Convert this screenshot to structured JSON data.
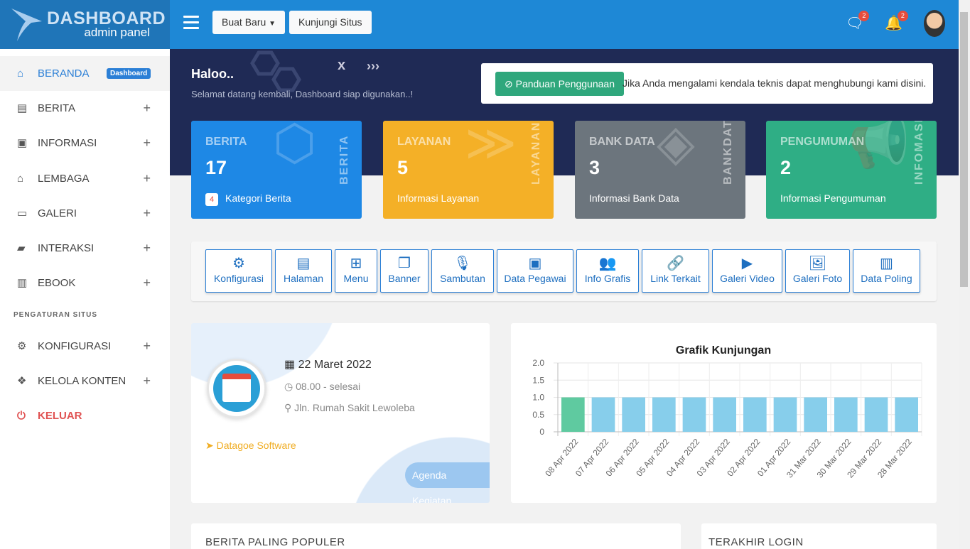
{
  "header": {
    "logo_title": "DASHBOARD",
    "logo_sub": "admin panel",
    "create_label": "Buat Baru",
    "visit_label": "Kunjungi Situs",
    "messages_count": "2",
    "notifications_count": "2"
  },
  "sidebar": {
    "items": [
      {
        "label": "BERANDA",
        "icon": "home-icon",
        "badge": "Dashboard"
      },
      {
        "label": "BERITA",
        "icon": "newspaper-icon"
      },
      {
        "label": "INFORMASI",
        "icon": "inbox-icon"
      },
      {
        "label": "LEMBAGA",
        "icon": "institution-icon"
      },
      {
        "label": "GALERI",
        "icon": "gallery-icon"
      },
      {
        "label": "INTERAKSI",
        "icon": "chat-icon"
      },
      {
        "label": "EBOOK",
        "icon": "book-icon"
      }
    ],
    "section_label": "PENGATURAN SITUS",
    "settings": [
      {
        "label": "KONFIGURASI",
        "icon": "gears-icon"
      },
      {
        "label": "KELOLA KONTEN",
        "icon": "dropbox-icon"
      }
    ],
    "logout_label": "KELUAR"
  },
  "banner": {
    "greeting": "Haloo..",
    "welcome": "Selamat datang kembali, Dashboard siap digunakan..!",
    "guide_label": "Panduan Penggunaan",
    "notice": "Jika Anda mengalami kendala teknis dapat menghubungi kami disini."
  },
  "stats": [
    {
      "title": "BERITA",
      "value": "17",
      "badge": "4",
      "subtitle": "Kategori Berita",
      "vertical": "BERITA",
      "color": "#1e88e5"
    },
    {
      "title": "LAYANAN",
      "value": "5",
      "subtitle": "Informasi Layanan",
      "vertical": "LAYANAN",
      "color": "#f4b027"
    },
    {
      "title": "BANK DATA",
      "value": "3",
      "subtitle": "Informasi Bank Data",
      "vertical": "BANKDATA",
      "color": "#6c757d"
    },
    {
      "title": "PENGUMUMAN",
      "value": "2",
      "subtitle": "Informasi Pengumuman",
      "vertical": "INFOMASI",
      "color": "#2fae85"
    }
  ],
  "quick": [
    "Konfigurasi",
    "Halaman",
    "Menu",
    "Banner",
    "Sambutan",
    "Data Pegawai",
    "Info Grafis",
    "Link Terkait",
    "Galeri Video",
    "Galeri Foto",
    "Data Poling"
  ],
  "event": {
    "date": "22 Maret 2022",
    "time": "08.00 - selesai",
    "location": "Jln. Rumah Sakit Lewoleba",
    "organizer": "Datagoe Software",
    "agenda_label": "Agenda Kegiatan"
  },
  "chart_data": {
    "type": "bar",
    "title": "Grafik Kunjungan",
    "categories": [
      "08 Apr 2022",
      "07 Apr 2022",
      "06 Apr 2022",
      "05 Apr 2022",
      "04 Apr 2022",
      "03 Apr 2022",
      "02 Apr 2022",
      "01 Apr 2022",
      "31 Mar 2022",
      "30 Mar 2022",
      "29 Mar 2022",
      "28 Mar 2022"
    ],
    "values": [
      1,
      1,
      1,
      1,
      1,
      1,
      1,
      1,
      1,
      1,
      1,
      1
    ],
    "ylim": [
      0,
      2
    ],
    "yticks": [
      "0",
      "0.5",
      "1.0",
      "1.5",
      "2.0"
    ],
    "grid": true,
    "colors": {
      "first": "#5fcaa0",
      "rest": "#87ceeb"
    }
  },
  "bottom": {
    "popular_title": "BERITA PALING POPULER",
    "last_login_title": "TERAKHIR LOGIN"
  }
}
